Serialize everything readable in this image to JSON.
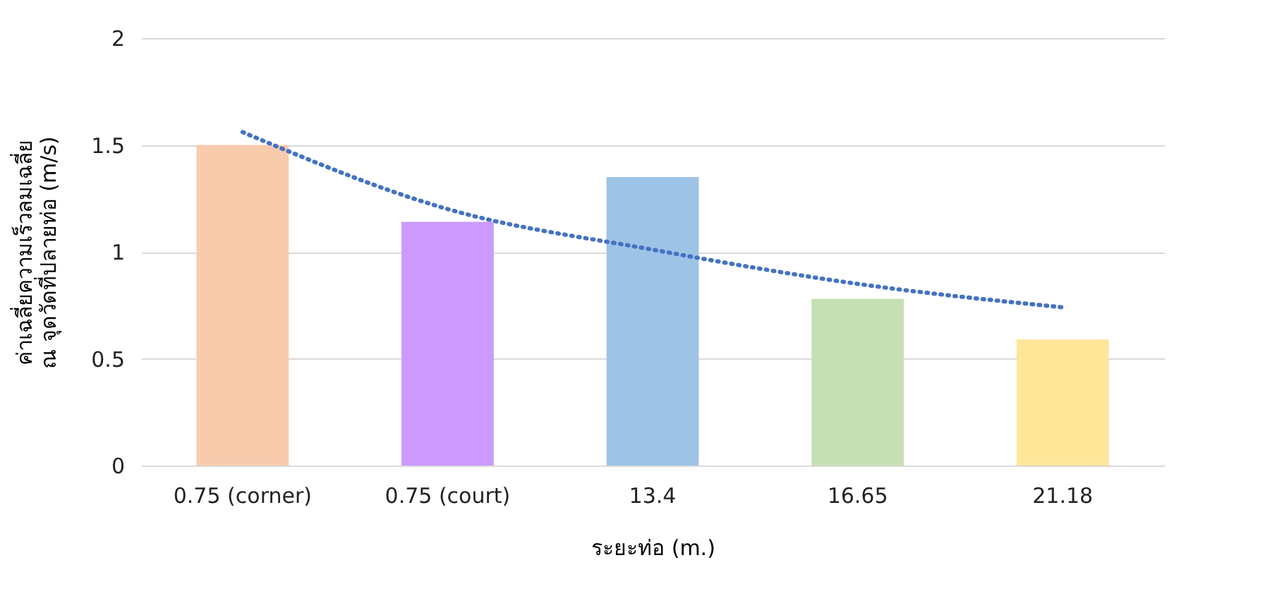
{
  "chart_data": {
    "type": "bar",
    "xlabel": "ระยะท่อ (m.)",
    "ylabel": "ค่าเฉลี่ยความเร็วลมเฉลี่ย\nณ จุดวัดที่ปลายท่อ (m/s)",
    "categories": [
      "0.75 (corner)",
      "0.75 (court)",
      "13.4",
      "16.65",
      "21.18"
    ],
    "series": [
      {
        "colors": [
          "#f8cbad",
          "#cc99ff",
          "#9dc3e6",
          "#c5e0b4",
          "#ffe699"
        ],
        "values": [
          1.5,
          1.14,
          1.35,
          0.78,
          0.59
        ]
      },
      {
        "type": "line",
        "color": "#4472c4",
        "line_style": "dotted",
        "values": [
          1.56,
          1.2,
          1.01,
          0.85,
          0.74
        ]
      }
    ],
    "ylim": [
      0,
      2
    ],
    "yticks": [
      0,
      0.5,
      1,
      1.5,
      2
    ],
    "grid": "y"
  }
}
